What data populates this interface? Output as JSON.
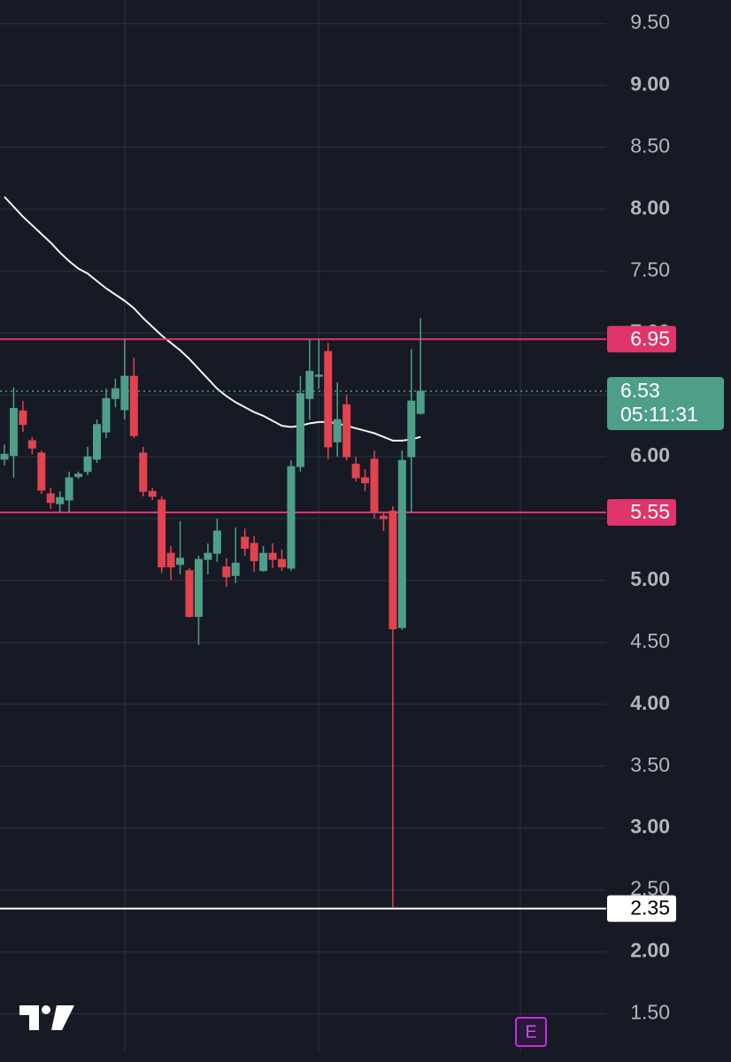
{
  "chart_data": {
    "type": "candlestick",
    "ylim": [
      1.11,
      9.69
    ],
    "yticks": [
      {
        "value": 1.5,
        "label": "1.50"
      },
      {
        "value": 2,
        "label": "2.00"
      },
      {
        "value": 2.5,
        "label": "2.50"
      },
      {
        "value": 3,
        "label": "3.00"
      },
      {
        "value": 3.5,
        "label": "3.50"
      },
      {
        "value": 4,
        "label": "4.00"
      },
      {
        "value": 4.5,
        "label": "4.50"
      },
      {
        "value": 5,
        "label": "5.00"
      },
      {
        "value": 5.5,
        "label": "5.50"
      },
      {
        "value": 6,
        "label": "6.00"
      },
      {
        "value": 6.5,
        "label": "6.50"
      },
      {
        "value": 7,
        "label": "7.00"
      },
      {
        "value": 7.5,
        "label": "7.50"
      },
      {
        "value": 8,
        "label": "8.00"
      },
      {
        "value": 8.5,
        "label": "8.50"
      },
      {
        "value": 9,
        "label": "9.00"
      },
      {
        "value": 9.5,
        "label": "9.50"
      }
    ],
    "grid": true,
    "up_color": "#4e9f88",
    "down_color": "#e2434f",
    "open": [
      5.98,
      6.01,
      6.37,
      6.13,
      6.03,
      5.7,
      5.62,
      5.65,
      5.84,
      5.88,
      5.98,
      6.2,
      6.47,
      6.38,
      6.65,
      6.03,
      5.72,
      5.65,
      5.22,
      5.13,
      5.08,
      4.71,
      5.17,
      5.22,
      5.11,
      5.04,
      5.35,
      5.3,
      5.08,
      5.22,
      5.17,
      5.1,
      5.92,
      6.47,
      6.65,
      6.85,
      6.12,
      6.42,
      5.94,
      5.83,
      5.98,
      5.52,
      5.56,
      4.62,
      6.0,
      6.35
    ],
    "high": [
      6.1,
      6.56,
      6.45,
      6.16,
      6.05,
      5.75,
      5.72,
      5.88,
      5.88,
      6.08,
      6.3,
      6.55,
      6.63,
      6.95,
      6.8,
      6.08,
      5.75,
      5.68,
      5.28,
      5.48,
      5.1,
      5.2,
      5.3,
      5.5,
      5.18,
      5.43,
      5.42,
      5.36,
      5.28,
      5.3,
      5.25,
      5.97,
      6.65,
      6.95,
      6.95,
      6.92,
      6.6,
      6.5,
      6.0,
      5.9,
      6.05,
      5.55,
      5.6,
      6.05,
      6.87,
      7.12
    ],
    "low": [
      5.93,
      5.83,
      6.2,
      6.02,
      5.7,
      5.58,
      5.55,
      5.55,
      5.82,
      5.85,
      5.95,
      6.15,
      6.4,
      6.3,
      6.15,
      5.68,
      5.65,
      5.06,
      5.0,
      5.05,
      4.7,
      4.48,
      5.05,
      5.15,
      4.95,
      4.98,
      5.2,
      5.07,
      5.07,
      5.1,
      5.08,
      5.08,
      5.88,
      6.3,
      6.55,
      5.98,
      6.0,
      5.97,
      5.8,
      5.72,
      5.5,
      5.4,
      2.36,
      4.6,
      5.55,
      6.34
    ],
    "close": [
      6.02,
      6.39,
      6.26,
      6.07,
      5.73,
      5.63,
      5.67,
      5.83,
      5.86,
      6.0,
      6.26,
      6.47,
      6.55,
      6.65,
      6.17,
      5.72,
      5.68,
      5.11,
      5.11,
      5.18,
      4.71,
      5.17,
      5.22,
      5.4,
      5.03,
      5.14,
      5.26,
      5.16,
      5.22,
      5.17,
      5.11,
      5.92,
      6.51,
      6.69,
      6.66,
      6.08,
      6.3,
      6.0,
      5.83,
      5.79,
      5.56,
      5.5,
      4.61,
      5.97,
      6.45,
      6.53
    ],
    "moving_average": {
      "color": "#f2f2f2",
      "values": [
        8.1,
        8.02,
        7.94,
        7.87,
        7.8,
        7.73,
        7.65,
        7.58,
        7.52,
        7.48,
        7.42,
        7.36,
        7.31,
        7.26,
        7.2,
        7.12,
        7.05,
        6.98,
        6.92,
        6.86,
        6.79,
        6.71,
        6.63,
        6.55,
        6.49,
        6.44,
        6.4,
        6.36,
        6.33,
        6.29,
        6.25,
        6.24,
        6.25,
        6.27,
        6.28,
        6.28,
        6.27,
        6.25,
        6.23,
        6.21,
        6.19,
        6.16,
        6.13,
        6.13,
        6.14,
        6.16
      ]
    },
    "price_lines": [
      {
        "value": 6.95,
        "color": "#e0356a",
        "text_color": "#ffffff"
      },
      {
        "value": 5.55,
        "color": "#e0356a",
        "text_color": "#ffffff"
      },
      {
        "value": 2.35,
        "color": "#ffffff",
        "text_color": "#000000"
      }
    ],
    "last_price": {
      "value": 6.53,
      "countdown": "05:11:31",
      "color": "#4e9f88"
    },
    "earnings_marker": "E"
  }
}
